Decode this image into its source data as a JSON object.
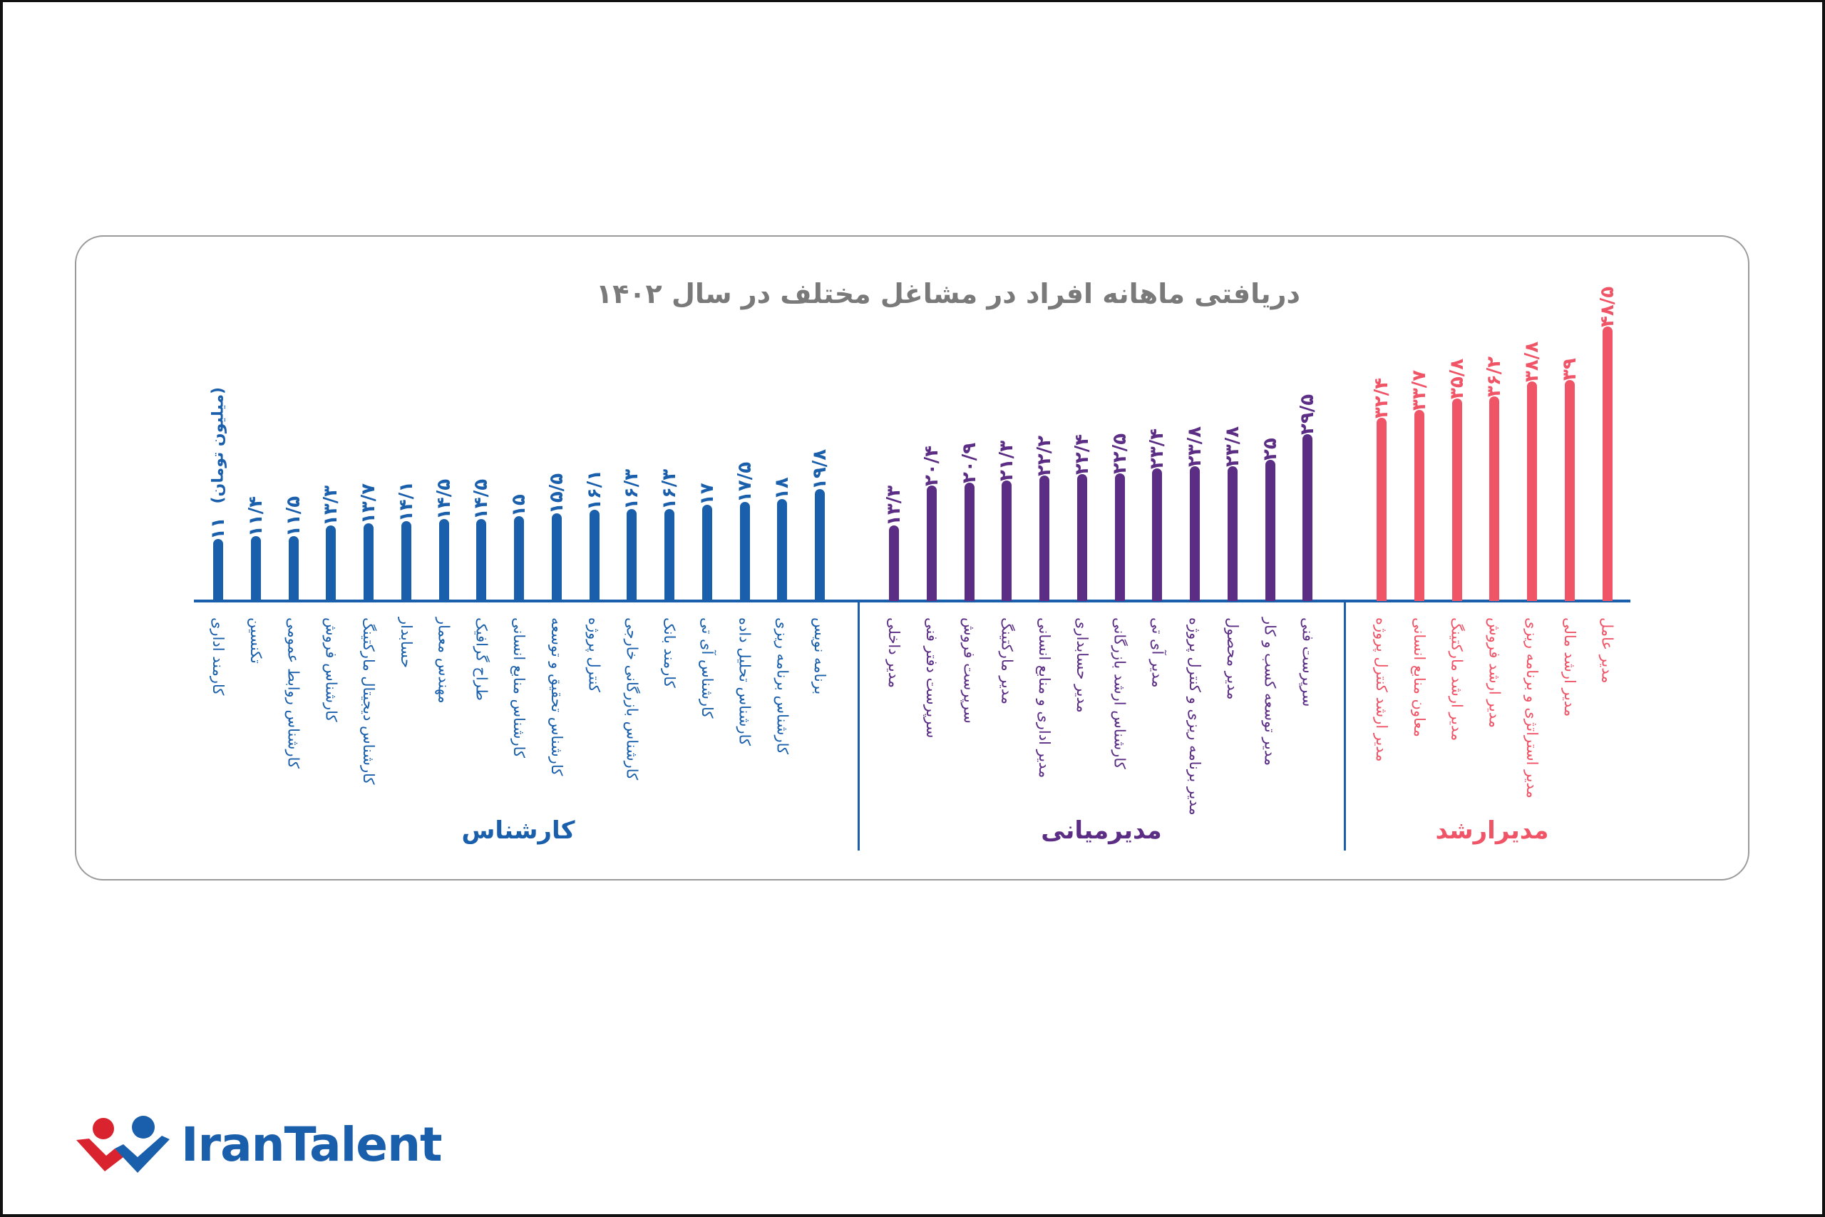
{
  "title": "دریافتی ماهانه افراد در مشاغل مختلف در سال ۱۴۰۲",
  "unit_label": "(میلیون تومان)",
  "brand": {
    "name": "IranTalent",
    "colors": {
      "red": "#d9232e",
      "blue": "#1a5fab"
    }
  },
  "groups": [
    {
      "name": "کارشناس",
      "color": "#1a5fab"
    },
    {
      "name": "مدیرمیانی",
      "color": "#5b2d84"
    },
    {
      "name": "مدیرارشد",
      "color": "#ef5467"
    }
  ],
  "chart_data": {
    "type": "bar",
    "title": "دریافتی ماهانه افراد در مشاغل مختلف در سال ۱۴۰۲",
    "xlabel": "",
    "ylabel": "میلیون تومان",
    "ylim": [
      0,
      50
    ],
    "grid": false,
    "legend": "group labels below axis",
    "groups": [
      "کارشناس",
      "مدیرمیانی",
      "مدیرارشد"
    ],
    "categories": [
      "کارمند اداری",
      "تکنسین",
      "کارشناس روابط عمومی",
      "کارشناس فروش",
      "کارشناس دیجیتال مارکتینگ",
      "حسابدار",
      "مهندس معمار",
      "طراح گرافیک",
      "کارشناس منابع انسانی",
      "کارشناس تحقیق و توسعه",
      "کنترل پروژه",
      "کارشناس بازرگانی خارجی",
      "کارمند بانک",
      "کارشناس آی تی",
      "کارشناس تحلیل داده",
      "کارشناس برنامه ریزی",
      "برنامه نویس",
      "مدیر داخلی",
      "سرپرست دفتر فنی",
      "سرپرست فروش",
      "مدیر مارکتینگ",
      "مدیر اداری و منابع انسانی",
      "مدیر حسابداری",
      "کارشناس ارشد بازرگانی",
      "مدیر آی تی",
      "مدیر برنامه ریزی و کنترل پروژه",
      "مدیر محصول",
      "مدیر توسعه کسب و کار",
      "سرپرست فنی",
      "مدیر ارشد کنترل پروژه",
      "معاون منابع انسانی",
      "مدیر ارشد مارکتینگ",
      "مدیر ارشد فروش",
      "مدیر استراتژی و برنامه ریزی",
      "مدیر ارشد مالی",
      "مدیر عامل"
    ],
    "series": [
      {
        "name": "کارشناس",
        "color": "#1a5fab",
        "items": [
          {
            "label": "کارمند اداری",
            "value": 11,
            "display": "۱۱"
          },
          {
            "label": "تکنسین",
            "value": 11.4,
            "display": "۱۱/۴"
          },
          {
            "label": "کارشناس روابط عمومی",
            "value": 11.5,
            "display": "۱۱/۵"
          },
          {
            "label": "کارشناس فروش",
            "value": 13.3,
            "display": "۱۳/۳"
          },
          {
            "label": "کارشناس دیجیتال مارکتینگ",
            "value": 13.7,
            "display": "۱۳/۷"
          },
          {
            "label": "حسابدار",
            "value": 14.1,
            "display": "۱۴/۱"
          },
          {
            "label": "مهندس معمار",
            "value": 14.5,
            "display": "۱۴/۵"
          },
          {
            "label": "طراح گرافیک",
            "value": 14.5,
            "display": "۱۴/۵"
          },
          {
            "label": "کارشناس منابع انسانی",
            "value": 15,
            "display": "۱۵"
          },
          {
            "label": "کارشناس تحقیق و توسعه",
            "value": 15.5,
            "display": "۱۵/۵"
          },
          {
            "label": "کنترل پروژه",
            "value": 16.1,
            "display": "۱۶/۱"
          },
          {
            "label": "کارشناس بازرگانی خارجی",
            "value": 16.3,
            "display": "۱۶/۳"
          },
          {
            "label": "کارمند بانک",
            "value": 16.3,
            "display": "۱۶/۳"
          },
          {
            "label": "کارشناس آی تی",
            "value": 17,
            "display": "۱۷"
          },
          {
            "label": "کارشناس تحلیل داده",
            "value": 17.5,
            "display": "۱۷/۵"
          },
          {
            "label": "کارشناس برنامه ریزی",
            "value": 18,
            "display": "۱۸"
          },
          {
            "label": "برنامه نویس",
            "value": 19.8,
            "display": "۱۹/۸"
          }
        ]
      },
      {
        "name": "مدیرمیانی",
        "color": "#5b2d84",
        "items": [
          {
            "label": "مدیر داخلی",
            "value": 13.3,
            "display": "۱۳/۳"
          },
          {
            "label": "سرپرست دفتر فنی",
            "value": 20.4,
            "display": "۲۰/۴"
          },
          {
            "label": "سرپرست فروش",
            "value": 20.9,
            "display": "۲۰/۹"
          },
          {
            "label": "مدیر مارکتینگ",
            "value": 21.3,
            "display": "۲۱/۳"
          },
          {
            "label": "مدیر اداری و منابع انسانی",
            "value": 22.2,
            "display": "۲۲/۲"
          },
          {
            "label": "مدیر حسابداری",
            "value": 22.4,
            "display": "۲۲/۴"
          },
          {
            "label": "کارشناس ارشد بازرگانی",
            "value": 22.5,
            "display": "۲۲/۵"
          },
          {
            "label": "مدیر آی تی",
            "value": 23.4,
            "display": "۲۳/۴"
          },
          {
            "label": "مدیر برنامه ریزی و کنترل پروژه",
            "value": 23.8,
            "display": "۲۳/۸"
          },
          {
            "label": "مدیر محصول",
            "value": 23.8,
            "display": "۲۳/۸"
          },
          {
            "label": "مدیر توسعه کسب و کار",
            "value": 25,
            "display": "۲۵"
          },
          {
            "label": "سرپرست فنی",
            "value": 29.5,
            "display": "۲۹/۵"
          }
        ]
      },
      {
        "name": "مدیرارشد",
        "color": "#ef5467",
        "items": [
          {
            "label": "مدیر ارشد کنترل پروژه",
            "value": 32.4,
            "display": "۳۲/۴"
          },
          {
            "label": "معاون منابع انسانی",
            "value": 33.7,
            "display": "۳۳/۷"
          },
          {
            "label": "مدیر ارشد مارکتینگ",
            "value": 35.8,
            "display": "۳۵/۸"
          },
          {
            "label": "مدیر ارشد فروش",
            "value": 36.2,
            "display": "۳۶/۲"
          },
          {
            "label": "مدیر استراتژی و برنامه ریزی",
            "value": 38.8,
            "display": "۳۸/۸"
          },
          {
            "label": "مدیر ارشد مالی",
            "value": 39,
            "display": "۳۹"
          },
          {
            "label": "مدیر عامل",
            "value": 48.5,
            "display": "۴۸/۵"
          }
        ]
      }
    ]
  }
}
